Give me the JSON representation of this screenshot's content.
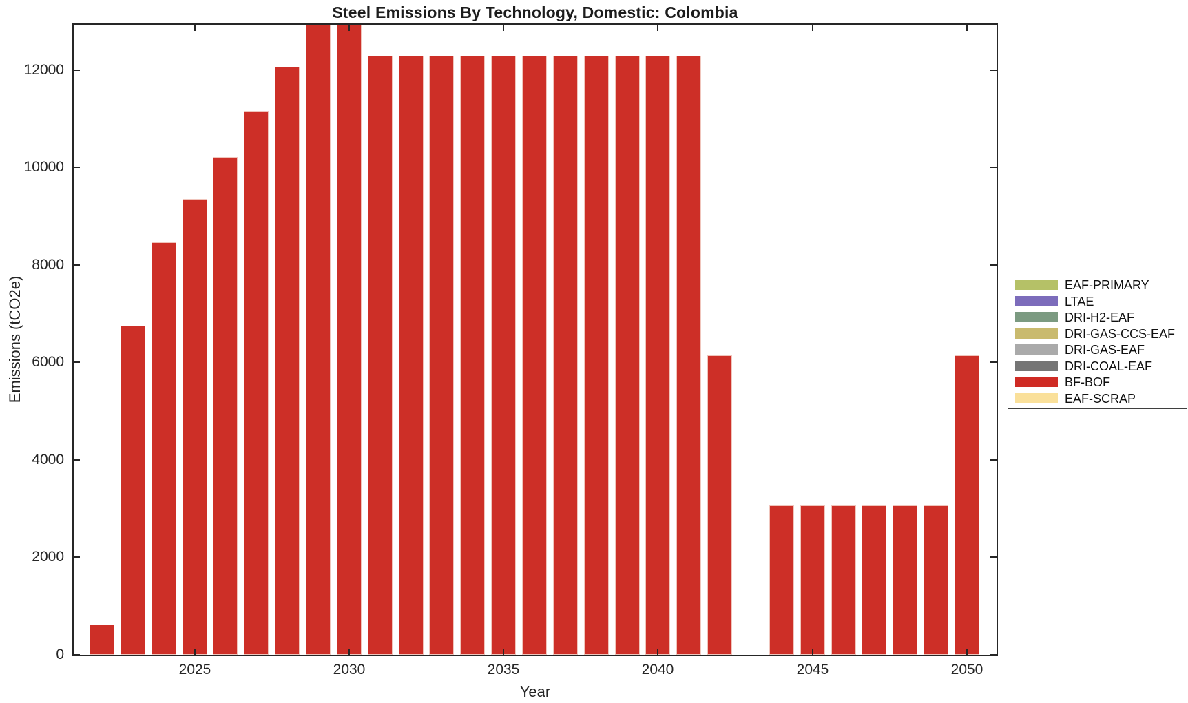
{
  "figure": {
    "background": "#ffffff",
    "axis_color": "#262626",
    "text_color": "#262626"
  },
  "chart_data": {
    "type": "bar",
    "title": "Steel Emissions By Technology, Domestic: Colombia",
    "xlabel": "Year",
    "ylabel": "Emissions (tCO2e)",
    "ylim": [
      0,
      12930
    ],
    "yticks": [
      0,
      2000,
      4000,
      6000,
      8000,
      10000,
      12000
    ],
    "xtick_years": [
      2025,
      2030,
      2035,
      2040,
      2045,
      2050
    ],
    "grid": false,
    "legend_position": "right-outside",
    "bar_color": "#cd2f27",
    "bar_edge_color": "#f0c5bc",
    "years": [
      2022,
      2023,
      2024,
      2025,
      2026,
      2027,
      2028,
      2029,
      2030,
      2031,
      2032,
      2033,
      2034,
      2035,
      2036,
      2037,
      2038,
      2039,
      2040,
      2041,
      2042,
      2043,
      2044,
      2045,
      2046,
      2047,
      2048,
      2049,
      2050
    ],
    "series": [
      {
        "name": "BF-BOF",
        "color": "#cd2f27",
        "values": [
          620,
          6750,
          8460,
          9360,
          10220,
          11160,
          12070,
          12930,
          12930,
          12300,
          12300,
          12300,
          12300,
          12300,
          12300,
          12300,
          12300,
          12300,
          12300,
          12300,
          6140,
          0,
          3070,
          3070,
          3070,
          3070,
          3070,
          3070,
          6140
        ]
      }
    ],
    "legend_entries": [
      {
        "label": "EAF-PRIMARY",
        "color": "#b5c167"
      },
      {
        "label": "LTAE",
        "color": "#7c6cbb"
      },
      {
        "label": "DRI-H2-EAF",
        "color": "#7b9a81"
      },
      {
        "label": "DRI-GAS-CCS-EAF",
        "color": "#c9ba6e"
      },
      {
        "label": "DRI-GAS-EAF",
        "color": "#aaaaaa"
      },
      {
        "label": "DRI-COAL-EAF",
        "color": "#757575"
      },
      {
        "label": "BF-BOF",
        "color": "#cf2b24"
      },
      {
        "label": "EAF-SCRAP",
        "color": "#fae09a"
      }
    ],
    "notes": "Only BF-BOF bars are visible; 2029 and 2030 bars are clipped at the top of the axes; no bar in 2043."
  }
}
